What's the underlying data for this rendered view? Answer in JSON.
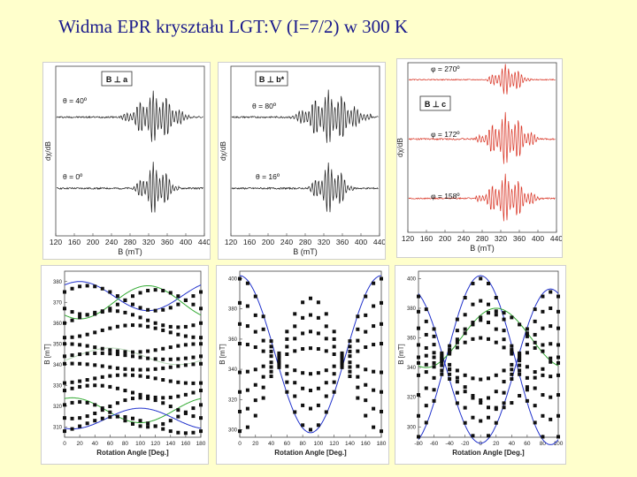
{
  "title": "Widma EPR kryształu LGT:V (I=7/2) w 300 K",
  "colors": {
    "background": "#ffffcc",
    "title": "#1a1a8c",
    "spectrum_black": "#1a1a1a",
    "spectrum_red": "#d83020",
    "fit_blue": "#2233cc",
    "fit_green": "#33aa33",
    "fit_light": "#b8d8b8"
  },
  "chart_data": [
    {
      "type": "line",
      "panel": "spectrum-1",
      "orientation_label": "B ⊥ a",
      "xlabel": "B (mT)",
      "ylabel": "dχ/dB",
      "xlim": [
        120,
        440
      ],
      "x_ticks": [
        120,
        160,
        200,
        240,
        280,
        320,
        360,
        400,
        440
      ],
      "series": [
        {
          "label": "θ = 40º",
          "center": 335,
          "half_width": 60,
          "amplitude": 1.0,
          "offset": 0.7
        },
        {
          "label": "θ = 0º",
          "center": 335,
          "half_width": 40,
          "amplitude": 1.0,
          "offset": 0.28
        }
      ]
    },
    {
      "type": "line",
      "panel": "spectrum-2",
      "orientation_label": "B ⊥ b*",
      "xlabel": "B (mT)",
      "ylabel": "dχ/dB",
      "xlim": [
        120,
        440
      ],
      "x_ticks": [
        120,
        160,
        200,
        240,
        280,
        320,
        360,
        400,
        440
      ],
      "series": [
        {
          "label": "θ = 80º",
          "center": 335,
          "half_width": 70,
          "amplitude": 1.0,
          "offset": 0.7
        },
        {
          "label": "θ = 16º",
          "center": 335,
          "half_width": 40,
          "amplitude": 1.0,
          "offset": 0.28
        }
      ]
    },
    {
      "type": "line",
      "panel": "spectrum-3",
      "orientation_label": "B ⊥ c",
      "xlabel": "B (mT)",
      "ylabel": "dχ/dB",
      "xlim": [
        120,
        440
      ],
      "x_ticks": [
        120,
        160,
        200,
        240,
        280,
        320,
        360,
        400,
        440
      ],
      "series": [
        {
          "label": "φ = 270º",
          "center": 335,
          "half_width": 40,
          "amplitude": 0.6,
          "offset": 0.9
        },
        {
          "label": "φ = 172º",
          "center": 335,
          "half_width": 55,
          "amplitude": 1.0,
          "offset": 0.55
        },
        {
          "label": "φ = 158º",
          "center": 335,
          "half_width": 55,
          "amplitude": 0.9,
          "offset": 0.2
        }
      ]
    },
    {
      "type": "scatter",
      "panel": "angular-1",
      "xlabel": "Rotation Angle [Deg.]",
      "ylabel": "B [mT]",
      "xlim": [
        0,
        180
      ],
      "ylim": [
        305,
        385
      ],
      "x_ticks": [
        0,
        20,
        40,
        60,
        80,
        100,
        120,
        140,
        160,
        180
      ],
      "y_ticks": [
        310,
        320,
        330,
        340,
        350,
        360,
        370,
        380
      ],
      "branches": [
        {
          "mean": 372,
          "amp": 6,
          "phase": 30
        },
        {
          "mean": 370,
          "amp": 6,
          "phase": 120
        },
        {
          "mean": 362,
          "amp": 4,
          "phase": 60
        },
        {
          "mean": 356,
          "amp": 3,
          "phase": 90
        },
        {
          "mean": 348,
          "amp": 2,
          "phase": 0
        },
        {
          "mean": 344,
          "amp": 1.5,
          "phase": 45
        },
        {
          "mean": 339,
          "amp": 1.5,
          "phase": 10
        },
        {
          "mean": 333,
          "amp": 2,
          "phase": 80
        },
        {
          "mean": 327,
          "amp": 3,
          "phase": 40
        },
        {
          "mean": 319,
          "amp": 5,
          "phase": 100
        },
        {
          "mean": 316,
          "amp": 6,
          "phase": 20
        },
        {
          "mean": 311,
          "amp": 4,
          "phase": 70
        }
      ],
      "fits": [
        {
          "color": "#2233cc",
          "mean": 373,
          "amp": 7,
          "phase": 20
        },
        {
          "color": "#33aa33",
          "mean": 370,
          "amp": 8,
          "phase": 110
        },
        {
          "color": "#33aa33",
          "mean": 318,
          "amp": 6,
          "phase": 10
        },
        {
          "color": "#2233cc",
          "mean": 314,
          "amp": 5,
          "phase": 100
        },
        {
          "color": "#b8d8b8",
          "mean": 344,
          "amp": 4,
          "phase": 60
        }
      ]
    },
    {
      "type": "scatter",
      "panel": "angular-2",
      "xlabel": "Rotation Angle [Deg.]",
      "ylabel": "B [mT]",
      "xlim": [
        0,
        180
      ],
      "ylim": [
        295,
        405
      ],
      "x_ticks": [
        0,
        20,
        40,
        60,
        80,
        100,
        120,
        140,
        160,
        180
      ],
      "y_ticks": [
        300,
        320,
        340,
        360,
        380,
        400
      ],
      "branches": [
        {
          "mean": 350,
          "amp": 50,
          "phase": 0
        },
        {
          "mean": 349,
          "amp": 35,
          "phase": 0
        },
        {
          "mean": 348,
          "amp": 22,
          "phase": 0
        },
        {
          "mean": 347,
          "amp": 10,
          "phase": 0
        },
        {
          "mean": 346,
          "amp": -8,
          "phase": 0
        },
        {
          "mean": 345,
          "amp": -20,
          "phase": 0
        },
        {
          "mean": 344,
          "amp": -32,
          "phase": 0
        },
        {
          "mean": 343,
          "amp": -44,
          "phase": 0
        }
      ],
      "fits": [
        {
          "color": "#2233cc",
          "mean": 350,
          "amp": 52,
          "phase": 0
        }
      ]
    },
    {
      "type": "scatter",
      "panel": "angular-3",
      "xlabel": "Rotation Angle [Deg.]",
      "ylabel": "B [mT]",
      "xlim": [
        -80,
        100
      ],
      "ylim": [
        293,
        405
      ],
      "x_ticks": [
        -80,
        -60,
        -40,
        -20,
        0,
        20,
        40,
        60,
        80,
        100
      ],
      "y_ticks": [
        300,
        320,
        340,
        360,
        380,
        400
      ],
      "branches": [
        {
          "mean": 345,
          "amp": 55,
          "phase": 0
        },
        {
          "mean": 345,
          "amp": 40,
          "phase": 0
        },
        {
          "mean": 346,
          "amp": 26,
          "phase": 0
        },
        {
          "mean": 347,
          "amp": 13,
          "phase": 0
        },
        {
          "mean": 344,
          "amp": -12,
          "phase": 0
        },
        {
          "mean": 343,
          "amp": -25,
          "phase": 0
        },
        {
          "mean": 342,
          "amp": -38,
          "phase": 0
        },
        {
          "mean": 341,
          "amp": -50,
          "phase": 0
        },
        {
          "mean": 360,
          "amp": 18,
          "phase": 20
        },
        {
          "mean": 330,
          "amp": -18,
          "phase": 20
        }
      ],
      "fits": [
        {
          "color": "#2233cc",
          "mean": 345,
          "amp": 57,
          "phase": 0
        },
        {
          "color": "#2233cc",
          "mean": 341,
          "amp": -52,
          "phase": 0
        },
        {
          "color": "#33aa33",
          "mean": 360,
          "amp": 20,
          "phase": 20
        }
      ]
    }
  ]
}
